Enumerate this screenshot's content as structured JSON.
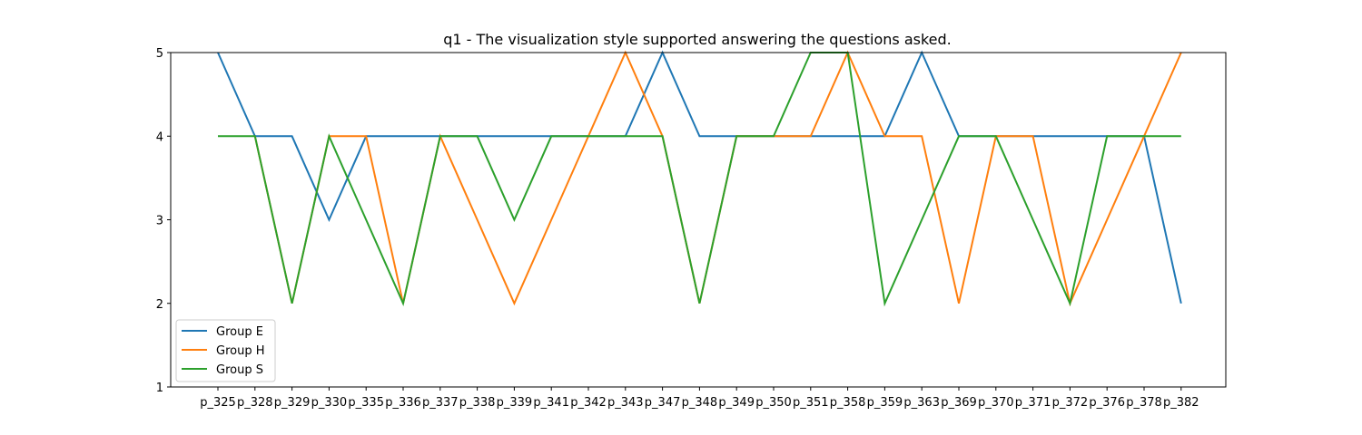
{
  "chart_data": {
    "type": "line",
    "title": "q1 - The visualization style supported answering the questions asked.",
    "xlabel": "",
    "ylabel": "",
    "ylim": [
      1,
      5
    ],
    "yticks": [
      "1",
      "2",
      "3",
      "4",
      "5"
    ],
    "grid": false,
    "legend_position": "lower-left",
    "categories": [
      "p_325",
      "p_328",
      "p_329",
      "p_330",
      "p_335",
      "p_336",
      "p_337",
      "p_338",
      "p_339",
      "p_341",
      "p_342",
      "p_343",
      "p_347",
      "p_348",
      "p_349",
      "p_350",
      "p_351",
      "p_358",
      "p_359",
      "p_363",
      "p_369",
      "p_370",
      "p_371",
      "p_372",
      "p_376",
      "p_378",
      "p_382"
    ],
    "series": [
      {
        "name": "Group E",
        "color": "#1f77b4",
        "values": [
          5,
          4,
          4,
          3,
          4,
          4,
          4,
          4,
          4,
          4,
          4,
          4,
          5,
          4,
          4,
          4,
          4,
          4,
          4,
          5,
          4,
          4,
          4,
          4,
          4,
          4,
          2
        ]
      },
      {
        "name": "Group H",
        "color": "#ff7f0e",
        "values": [
          null,
          4,
          2,
          4,
          4,
          2,
          4,
          3,
          2,
          3,
          4,
          5,
          4,
          2,
          4,
          4,
          4,
          5,
          4,
          4,
          2,
          4,
          4,
          2,
          3,
          4,
          5
        ]
      },
      {
        "name": "Group S",
        "color": "#2ca02c",
        "values": [
          4,
          4,
          2,
          4,
          3,
          2,
          4,
          4,
          3,
          4,
          4,
          4,
          4,
          2,
          4,
          4,
          5,
          5,
          2,
          3,
          4,
          4,
          3,
          2,
          4,
          4,
          4
        ]
      }
    ]
  }
}
